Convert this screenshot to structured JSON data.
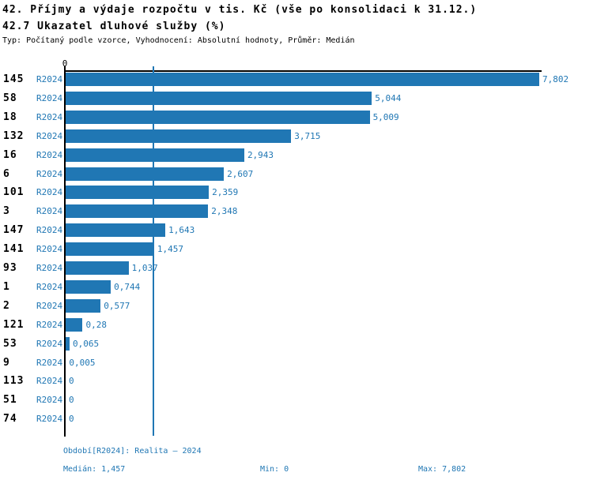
{
  "header": {
    "title_line1": "42. Příjmy a výdaje rozpočtu v tis. Kč (vše po konsolidaci k 31.12.)",
    "title_line2": "42.7 Ukazatel dluhové služby (%)",
    "subtitle": "Typ: Počítaný podle vzorce, Vyhodnocení: Absolutní hodnoty, Průměr: Medián"
  },
  "chart_data": {
    "type": "bar",
    "orientation": "horizontal",
    "title": "42.7 Ukazatel dluhové služby (%)",
    "xlabel": "",
    "ylabel": "",
    "axis_zero_label": "0",
    "xlim": [
      0,
      7.85
    ],
    "grid": "single vertical median gridline",
    "legend": "none",
    "median_value": 1.457,
    "bar_color": "#2077b4",
    "categories": [
      "145",
      "58",
      "18",
      "132",
      "16",
      "6",
      "101",
      "3",
      "147",
      "141",
      "93",
      "1",
      "2",
      "121",
      "53",
      "9",
      "113",
      "51",
      "74"
    ],
    "period_label": "R2024",
    "values": [
      7.802,
      5.044,
      5.009,
      3.715,
      2.943,
      2.607,
      2.359,
      2.348,
      1.643,
      1.457,
      1.037,
      0.744,
      0.577,
      0.28,
      0.065,
      0.005,
      0,
      0,
      0
    ],
    "rows": [
      {
        "id": "145",
        "period": "R2024",
        "value": 7.802,
        "label": "7,802"
      },
      {
        "id": "58",
        "period": "R2024",
        "value": 5.044,
        "label": "5,044"
      },
      {
        "id": "18",
        "period": "R2024",
        "value": 5.009,
        "label": "5,009"
      },
      {
        "id": "132",
        "period": "R2024",
        "value": 3.715,
        "label": "3,715"
      },
      {
        "id": "16",
        "period": "R2024",
        "value": 2.943,
        "label": "2,943"
      },
      {
        "id": "6",
        "period": "R2024",
        "value": 2.607,
        "label": "2,607"
      },
      {
        "id": "101",
        "period": "R2024",
        "value": 2.359,
        "label": "2,359"
      },
      {
        "id": "3",
        "period": "R2024",
        "value": 2.348,
        "label": "2,348"
      },
      {
        "id": "147",
        "period": "R2024",
        "value": 1.643,
        "label": "1,643"
      },
      {
        "id": "141",
        "period": "R2024",
        "value": 1.457,
        "label": "1,457"
      },
      {
        "id": "93",
        "period": "R2024",
        "value": 1.037,
        "label": "1,037"
      },
      {
        "id": "1",
        "period": "R2024",
        "value": 0.744,
        "label": "0,744"
      },
      {
        "id": "2",
        "period": "R2024",
        "value": 0.577,
        "label": "0,577"
      },
      {
        "id": "121",
        "period": "R2024",
        "value": 0.28,
        "label": "0,28"
      },
      {
        "id": "53",
        "period": "R2024",
        "value": 0.065,
        "label": "0,065"
      },
      {
        "id": "9",
        "period": "R2024",
        "value": 0.005,
        "label": "0,005"
      },
      {
        "id": "113",
        "period": "R2024",
        "value": 0,
        "label": "0"
      },
      {
        "id": "51",
        "period": "R2024",
        "value": 0,
        "label": "0"
      },
      {
        "id": "74",
        "period": "R2024",
        "value": 0,
        "label": "0"
      }
    ]
  },
  "footer": {
    "period_line": "Období[R2024]: Realita – 2024",
    "median_label": "Medián: 1,457",
    "min_label": "Min: 0",
    "max_label": "Max: 7,802"
  },
  "colors": {
    "accent": "#2077b4",
    "axis": "#000000",
    "background": "#ffffff"
  }
}
